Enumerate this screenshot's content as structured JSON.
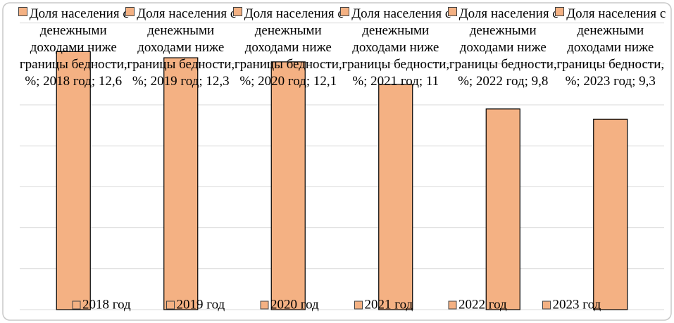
{
  "chart_data": {
    "type": "bar",
    "categories": [
      "Доля населения с денежными доходами ниже границы бедности, %"
    ],
    "series": [
      {
        "name": "2018 год",
        "color": "#f4b183",
        "values": [
          12.6
        ],
        "value_labels": [
          "Доля населения с денежными доходами ниже границы бедности, %; 2018 год; 12,6"
        ]
      },
      {
        "name": "2019 год",
        "color": "#f4b183",
        "values": [
          12.3
        ],
        "value_labels": [
          "Доля населения с денежными доходами ниже границы бедности, %; 2019 год; 12,3"
        ]
      },
      {
        "name": "2020 год",
        "color": "#f4b183",
        "values": [
          12.1
        ],
        "value_labels": [
          "Доля населения с денежными доходами ниже границы бедности, %; 2020 год; 12,1"
        ]
      },
      {
        "name": "2021 год",
        "color": "#f4b183",
        "values": [
          11
        ],
        "value_labels": [
          "Доля населения с денежными доходами ниже границы бедности, %; 2021 год; 11"
        ]
      },
      {
        "name": "2022 год",
        "color": "#f4b183",
        "values": [
          9.8
        ],
        "value_labels": [
          "Доля населения с денежными доходами ниже границы бедности, %; 2022 год; 9,8"
        ]
      },
      {
        "name": "2023 год",
        "color": "#f4b183",
        "values": [
          9.3
        ],
        "value_labels": [
          "Доля населения с денежными доходами ниже границы бедности, %; 2023 год; 9,3"
        ]
      }
    ],
    "ylim": [
      0,
      14
    ],
    "yticks": [
      0,
      2,
      4,
      6,
      8,
      10,
      12,
      14
    ],
    "grid": true,
    "legend": "bottom"
  }
}
